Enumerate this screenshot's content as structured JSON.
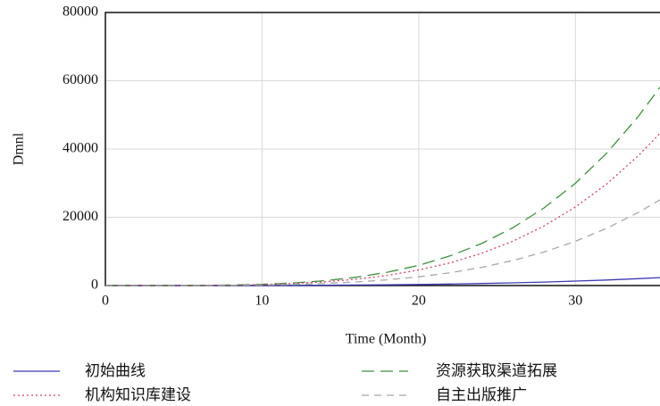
{
  "chart_data": {
    "type": "line",
    "xlabel": "Time (Month)",
    "ylabel": "Dmnl",
    "x": [
      0,
      2,
      4,
      6,
      8,
      10,
      12,
      14,
      16,
      18,
      20,
      22,
      24,
      26,
      28,
      30,
      32,
      34,
      35.4
    ],
    "series": [
      {
        "name": "初始曲线",
        "color": "#3b3bb0",
        "dash": "none",
        "values": [
          0,
          0,
          1,
          5,
          13,
          28,
          53,
          90,
          144,
          217,
          314,
          439,
          595,
          787,
          1020,
          1300,
          1629,
          2014,
          2320
        ]
      },
      {
        "name": "资源获取渠道拓展",
        "color": "#3f8f3f",
        "dash": "14,7",
        "values": [
          0,
          1,
          10,
          48,
          152,
          370,
          767,
          1421,
          2425,
          3884,
          5920,
          8667,
          12276,
          16908,
          22742,
          29970,
          38797,
          49444,
          58104
        ]
      },
      {
        "name": "机构知识库建设",
        "color": "#cc4466",
        "dash": "2,3",
        "values": [
          0,
          0,
          7,
          37,
          116,
          284,
          589,
          1091,
          1861,
          2981,
          4544,
          6653,
          9422,
          12978,
          17456,
          23004,
          29780,
          37952,
          44599
        ]
      },
      {
        "name": "自主出版推广",
        "color": "#a8a8a8",
        "dash": "8,6",
        "values": [
          0,
          0,
          4,
          21,
          66,
          160,
          332,
          615,
          1049,
          1680,
          2560,
          3748,
          5308,
          7312,
          9834,
          12960,
          16777,
          21381,
          25126
        ]
      }
    ],
    "xlim": [
      0,
      35.4
    ],
    "xticks": [
      0,
      10,
      20,
      30
    ],
    "ylim": [
      0,
      80000
    ],
    "yticks": [
      0,
      20000,
      40000,
      60000,
      80000
    ],
    "grid": true
  }
}
